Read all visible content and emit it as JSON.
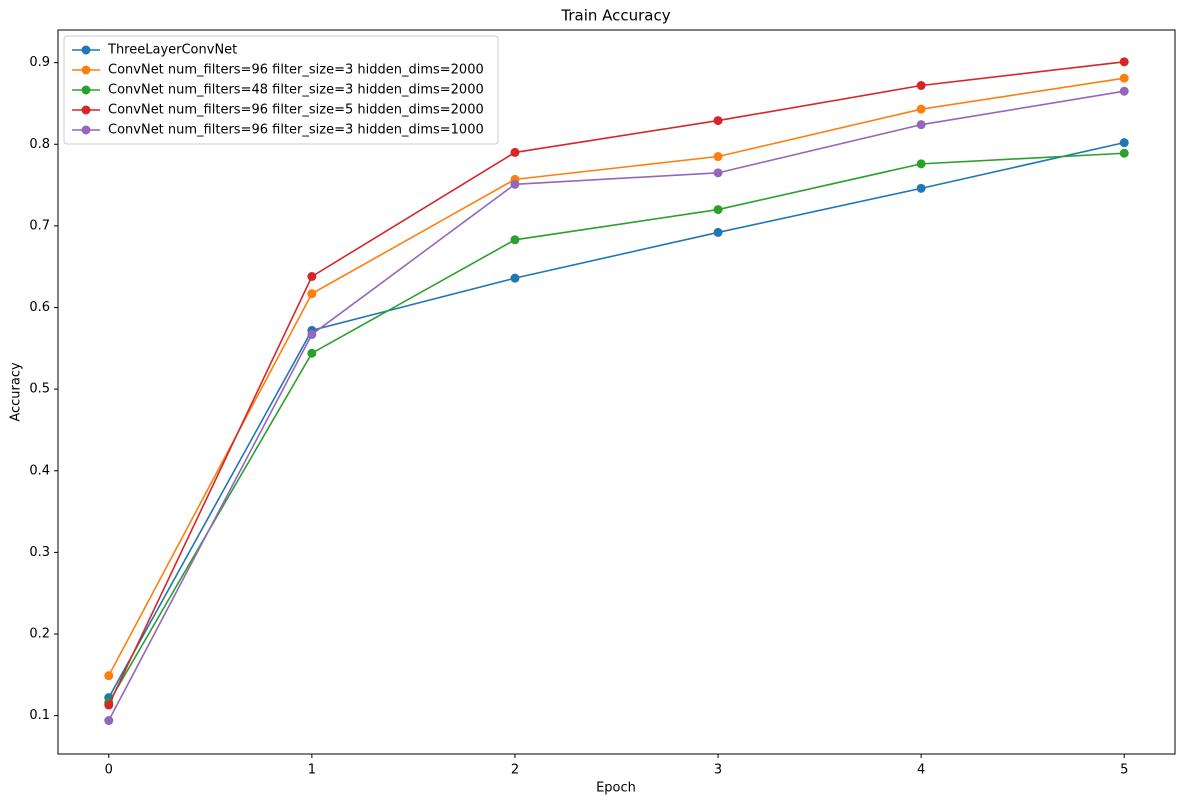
{
  "chart_data": {
    "type": "line",
    "title": "Train Accuracy",
    "x_label": "Epoch",
    "y_label": "Accuracy",
    "x": [
      0,
      1,
      2,
      3,
      4,
      5
    ],
    "series": [
      {
        "name": "ThreeLayerConvNet",
        "color": "#1f77b4",
        "values": [
          0.122,
          0.572,
          0.636,
          0.692,
          0.746,
          0.802
        ]
      },
      {
        "name": "ConvNet num_filters=96 filter_size=3 hidden_dims=2000",
        "color": "#ff7f0e",
        "values": [
          0.149,
          0.617,
          0.757,
          0.785,
          0.843,
          0.881
        ]
      },
      {
        "name": "ConvNet num_filters=48 filter_size=3 hidden_dims=2000",
        "color": "#2ca02c",
        "values": [
          0.116,
          0.544,
          0.683,
          0.72,
          0.776,
          0.789
        ]
      },
      {
        "name": "ConvNet num_filters=96 filter_size=5 hidden_dims=2000",
        "color": "#d62728",
        "values": [
          0.113,
          0.638,
          0.79,
          0.829,
          0.872,
          0.901
        ]
      },
      {
        "name": "ConvNet num_filters=96 filter_size=3 hidden_dims=1000",
        "color": "#9467bd",
        "values": [
          0.094,
          0.567,
          0.751,
          0.765,
          0.824,
          0.865
        ]
      }
    ],
    "xlim": [
      -0.25,
      5.25
    ],
    "ylim": [
      0.053,
      0.94
    ],
    "xticks": [
      0,
      1,
      2,
      3,
      4,
      5
    ],
    "yticks": [
      0.1,
      0.2,
      0.3,
      0.4,
      0.5,
      0.6,
      0.7,
      0.8,
      0.9
    ],
    "legend": "upper left"
  }
}
